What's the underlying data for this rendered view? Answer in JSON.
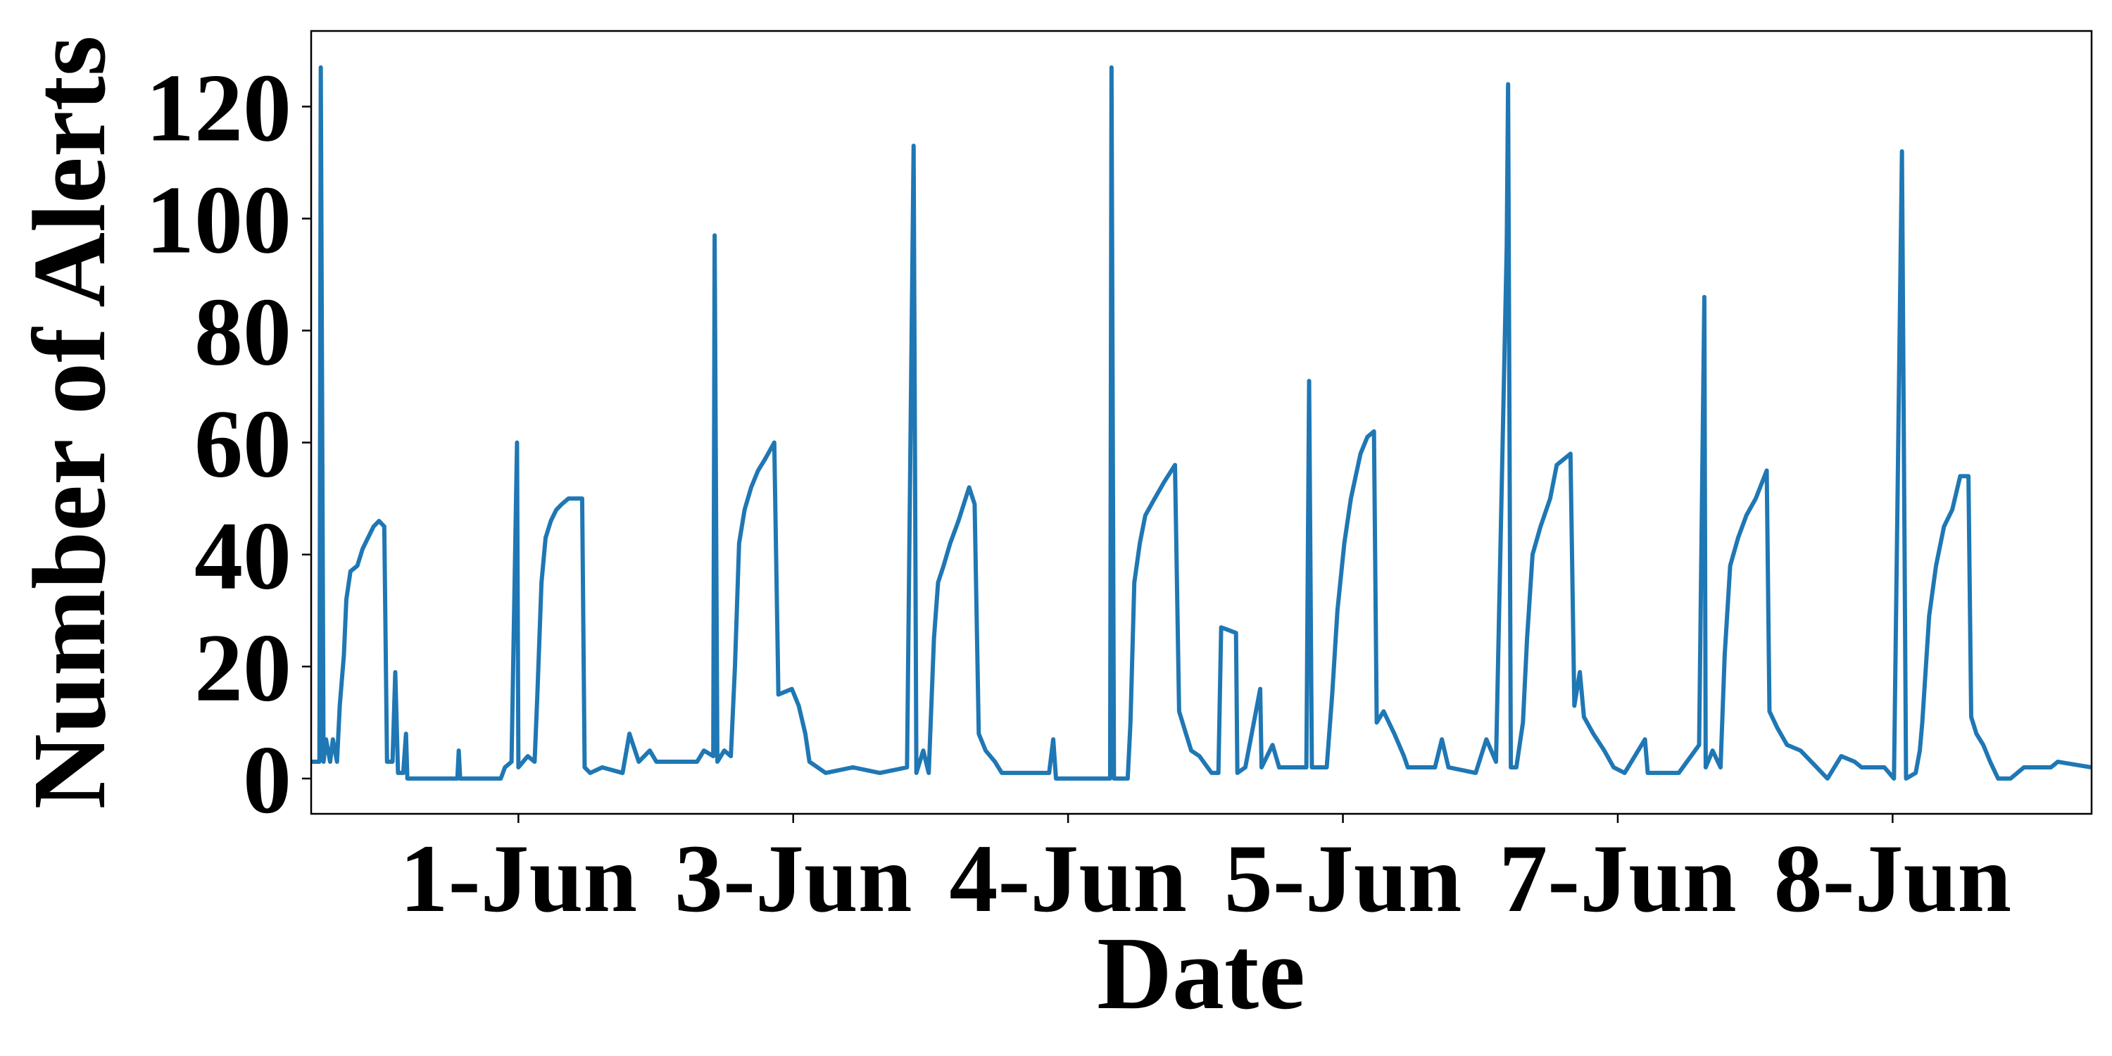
{
  "chart_data": {
    "type": "line",
    "xlabel": "Date",
    "ylabel": "Number of Alerts",
    "color": "#1f77b4",
    "xlim": [
      -0.754,
      5.724
    ],
    "ylim": [
      -6.3,
      133.5
    ],
    "xticks": [
      {
        "value": 0,
        "label": "1-Jun"
      },
      {
        "value": 1,
        "label": "3-Jun"
      },
      {
        "value": 2,
        "label": "4-Jun"
      },
      {
        "value": 3,
        "label": "5-Jun"
      },
      {
        "value": 4,
        "label": "7-Jun"
      },
      {
        "value": 5,
        "label": "8-Jun"
      }
    ],
    "yticks": [
      0,
      20,
      40,
      60,
      80,
      100,
      120
    ],
    "x": [
      -0.754,
      -0.724,
      -0.719,
      -0.709,
      -0.7,
      -0.685,
      -0.675,
      -0.66,
      -0.65,
      -0.635,
      -0.626,
      -0.611,
      -0.586,
      -0.567,
      -0.547,
      -0.527,
      -0.507,
      -0.488,
      -0.478,
      -0.458,
      -0.448,
      -0.438,
      -0.419,
      -0.409,
      -0.404,
      -0.222,
      -0.217,
      -0.212,
      -0.064,
      -0.049,
      -0.025,
      -0.005,
      0,
      0.034,
      0.059,
      0.069,
      0.084,
      0.099,
      0.118,
      0.138,
      0.158,
      0.182,
      0.232,
      0.241,
      0.261,
      0.305,
      0.379,
      0.404,
      0.438,
      0.478,
      0.502,
      0.65,
      0.675,
      0.709,
      0.714,
      0.724,
      0.749,
      0.773,
      0.788,
      0.803,
      0.823,
      0.847,
      0.872,
      0.897,
      0.931,
      0.946,
      0.995,
      1.02,
      1.044,
      1.059,
      1.118,
      1.217,
      1.315,
      1.414,
      1.438,
      1.448,
      1.473,
      1.493,
      1.512,
      1.527,
      1.547,
      1.571,
      1.601,
      1.64,
      1.66,
      1.675,
      1.7,
      1.734,
      1.759,
      1.857,
      1.931,
      1.946,
      1.956,
      2.153,
      2.158,
      2.167,
      2.217,
      2.227,
      2.241,
      2.261,
      2.281,
      2.315,
      2.35,
      2.389,
      2.404,
      2.429,
      2.448,
      2.478,
      2.522,
      2.547,
      2.557,
      2.611,
      2.616,
      2.645,
      2.699,
      2.704,
      2.744,
      2.768,
      2.867,
      2.877,
      2.887,
      2.941,
      2.961,
      2.98,
      3.005,
      3.029,
      3.064,
      3.089,
      3.113,
      3.123,
      3.148,
      3.187,
      3.222,
      3.236,
      3.335,
      3.36,
      3.384,
      3.483,
      3.522,
      3.557,
      3.596,
      3.601,
      3.611,
      3.631,
      3.655,
      3.67,
      3.69,
      3.719,
      3.754,
      3.778,
      3.828,
      3.842,
      3.862,
      3.877,
      3.911,
      3.951,
      3.985,
      4.025,
      4.099,
      4.109,
      4.222,
      4.296,
      4.315,
      4.32,
      4.345,
      4.374,
      4.389,
      4.409,
      4.438,
      4.468,
      4.502,
      4.542,
      4.552,
      4.581,
      4.616,
      4.665,
      4.724,
      4.763,
      4.813,
      4.862,
      4.887,
      4.936,
      4.97,
      5.005,
      5.034,
      5.049,
      5.084,
      5.099,
      5.108,
      5.133,
      5.158,
      5.187,
      5.217,
      5.246,
      5.276,
      5.286,
      5.305,
      5.33,
      5.355,
      5.384,
      5.429,
      5.478,
      5.552,
      5.576,
      5.601,
      5.724
    ],
    "values": [
      3,
      3,
      127,
      3,
      7,
      3,
      7,
      3,
      13,
      22,
      32,
      37,
      38,
      41,
      43,
      45,
      46,
      45,
      3,
      3,
      19,
      1,
      1,
      8,
      0,
      0,
      5,
      0,
      0,
      2,
      3,
      60,
      2,
      4,
      3,
      15,
      35,
      43,
      46,
      48,
      49,
      50,
      50,
      2,
      1,
      2,
      1,
      8,
      3,
      5,
      3,
      3,
      5,
      4,
      97,
      3,
      5,
      4,
      20,
      42,
      48,
      52,
      55,
      57,
      60,
      15,
      16,
      13,
      8,
      3,
      1,
      2,
      1,
      2,
      113,
      1,
      5,
      1,
      25,
      35,
      38,
      42,
      46,
      52,
      49,
      8,
      5,
      3,
      1,
      1,
      1,
      7,
      0,
      0,
      127,
      0,
      0,
      10,
      35,
      42,
      47,
      50,
      53,
      56,
      12,
      8,
      5,
      4,
      1,
      1,
      27,
      26,
      1,
      2,
      16,
      2,
      6,
      2,
      2,
      71,
      2,
      2,
      15,
      30,
      42,
      50,
      58,
      61,
      62,
      10,
      12,
      8,
      4,
      2,
      2,
      7,
      2,
      1,
      7,
      3,
      95,
      124,
      2,
      2,
      10,
      25,
      40,
      45,
      50,
      56,
      58,
      13,
      19,
      11,
      8,
      5,
      2,
      1,
      7,
      1,
      1,
      6,
      86,
      2,
      5,
      2,
      22,
      38,
      43,
      47,
      50,
      55,
      12,
      9,
      6,
      5,
      2,
      0,
      4,
      3,
      2,
      2,
      2,
      0,
      112,
      0,
      1,
      5,
      10,
      29,
      38,
      45,
      48,
      54,
      54,
      11,
      8,
      6,
      3,
      0,
      0,
      2,
      2,
      2,
      3,
      2
    ]
  }
}
